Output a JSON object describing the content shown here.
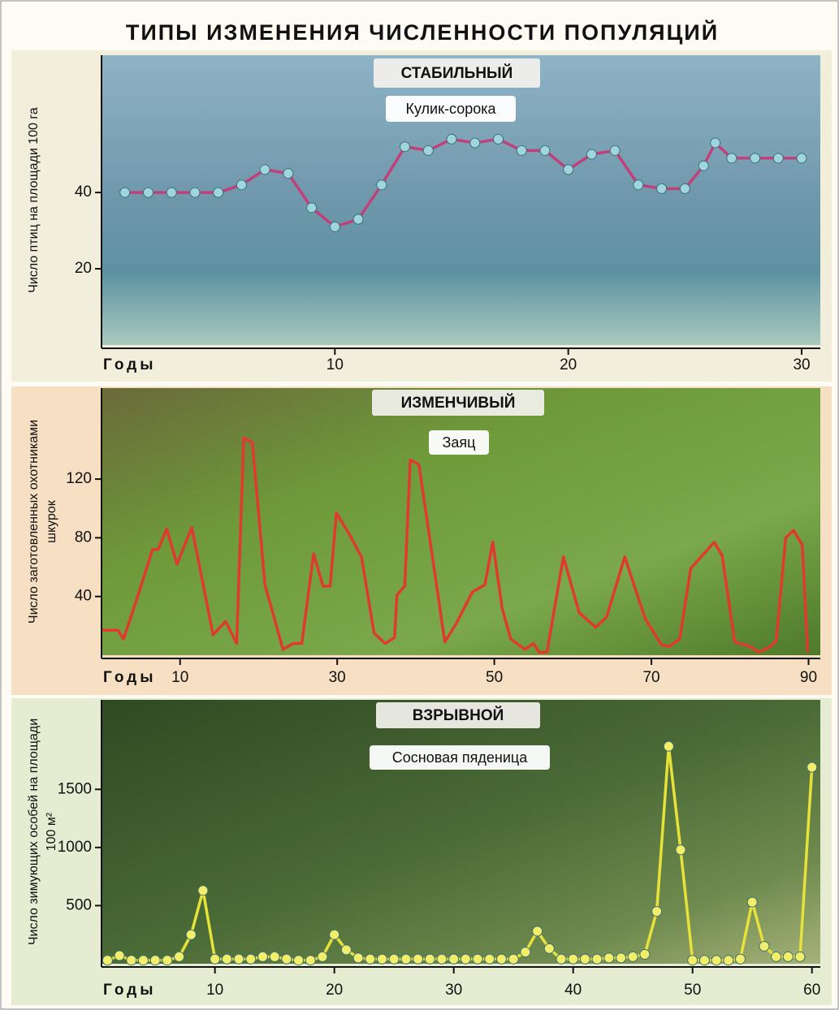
{
  "title": "ТИПЫ ИЗМЕНЕНИЯ ЧИСЛЕННОСТИ ПОПУЛЯЦИЙ",
  "chart_data": [
    {
      "type": "line",
      "title": "СТАБИЛЬНЫЙ",
      "x_label": "Годы",
      "y_label": [
        "Число птиц на площади 100 га"
      ],
      "markers": true,
      "marker_color": "#9fd6de",
      "x": [
        1,
        2,
        3,
        4,
        5,
        6,
        7,
        8,
        9,
        10,
        11,
        12,
        13,
        14,
        15,
        16,
        17,
        18,
        19,
        20,
        21,
        22,
        23,
        24,
        25,
        25.8,
        26.3,
        27,
        28,
        29,
        30
      ],
      "series": [
        {
          "name": "Кулик-сорока",
          "color": "#c0407a",
          "values": [
            40,
            40,
            40,
            40,
            40,
            42,
            46,
            45,
            36,
            31,
            33,
            42,
            52,
            51,
            54,
            53,
            54,
            51,
            51,
            46,
            50,
            51,
            42,
            41,
            41,
            47,
            53,
            49,
            49,
            49,
            49
          ]
        }
      ],
      "xlim": [
        0,
        30.8
      ],
      "ylim": [
        0,
        76
      ],
      "xticks": [
        10,
        20,
        30
      ],
      "yticks": [
        20,
        40
      ]
    },
    {
      "type": "line",
      "title": "ИЗМЕНЧИВЫЙ",
      "x_label": "Годы",
      "y_label": [
        "Число заготовленных охотниками",
        "шкурок"
      ],
      "markers": false,
      "x": [
        0.1,
        2.1,
        2.8,
        4.6,
        6.5,
        7.2,
        8.3,
        9.6,
        11.5,
        12.5,
        14.2,
        15.8,
        17.2,
        18.1,
        19.2,
        20.8,
        23.1,
        24.4,
        25.5,
        27.0,
        28.2,
        29.1,
        29.9,
        31.6,
        33.1,
        34.7,
        36.1,
        37.3,
        37.6,
        38.6,
        39.3,
        40.4,
        43.7,
        45.1,
        47.2,
        48.8,
        49.8,
        51.0,
        52.1,
        53.9,
        55.0,
        55.7,
        56.7,
        58.8,
        60.8,
        62.9,
        64.3,
        66.6,
        69.2,
        71.3,
        72.3,
        73.6,
        75.0,
        78.0,
        79.0,
        80.6,
        82.6,
        83.6,
        85.2,
        85.9,
        87.1,
        88.1,
        89.2,
        89.9
      ],
      "series": [
        {
          "name": "Заяц",
          "color": "#e03a2e",
          "values": [
            17,
            17,
            11,
            40,
            72,
            72,
            86,
            62,
            87,
            60,
            14,
            23,
            8,
            148,
            145,
            48,
            4,
            8,
            8,
            69,
            47,
            47,
            97,
            82,
            67,
            15,
            8,
            12,
            41,
            47,
            133,
            130,
            9,
            21,
            43,
            48,
            77,
            32,
            11,
            4,
            8,
            2,
            2,
            67,
            29,
            19,
            26,
            67,
            25,
            7,
            6,
            11,
            59,
            77,
            68,
            9,
            6,
            2,
            6,
            10,
            80,
            85,
            75,
            2
          ]
        }
      ],
      "xlim": [
        0,
        91.5
      ],
      "ylim": [
        0,
        182
      ],
      "xticks": [
        10,
        30,
        50,
        70,
        90
      ],
      "yticks": [
        40,
        80,
        120
      ]
    },
    {
      "type": "line",
      "title": "ВЗРЫВНОЙ",
      "x_label": "Годы",
      "y_label": [
        "Число зимующих особей на площади",
        "100 м²"
      ],
      "markers": true,
      "marker_color": "#f2ee6a",
      "x": [
        1,
        2,
        3,
        4,
        5,
        6,
        7,
        8,
        9,
        10,
        11,
        12,
        13,
        14,
        15,
        16,
        17,
        18,
        19,
        20,
        21,
        22,
        23,
        24,
        25,
        26,
        27,
        28,
        29,
        30,
        31,
        32,
        33,
        34,
        35,
        36,
        37,
        38,
        39,
        40,
        41,
        42,
        43,
        44,
        45,
        46,
        47,
        48,
        49,
        50,
        51,
        52,
        53,
        54,
        55,
        56,
        57,
        58,
        59,
        60
      ],
      "series": [
        {
          "name": "Сосновая пяденица",
          "color": "#e6e23a",
          "values": [
            30,
            70,
            30,
            30,
            30,
            30,
            60,
            250,
            630,
            40,
            40,
            40,
            40,
            60,
            60,
            40,
            30,
            30,
            60,
            250,
            120,
            50,
            40,
            40,
            40,
            40,
            40,
            40,
            40,
            40,
            40,
            40,
            40,
            40,
            40,
            100,
            280,
            130,
            40,
            40,
            40,
            40,
            50,
            50,
            60,
            80,
            450,
            1870,
            980,
            30,
            30,
            30,
            30,
            40,
            530,
            150,
            60,
            60,
            60,
            1690
          ]
        }
      ],
      "xlim": [
        0.5,
        60.7
      ],
      "ylim": [
        0,
        2270
      ],
      "xticks": [
        10,
        20,
        30,
        40,
        50,
        60
      ],
      "yticks": [
        500,
        1000,
        1500
      ]
    }
  ]
}
